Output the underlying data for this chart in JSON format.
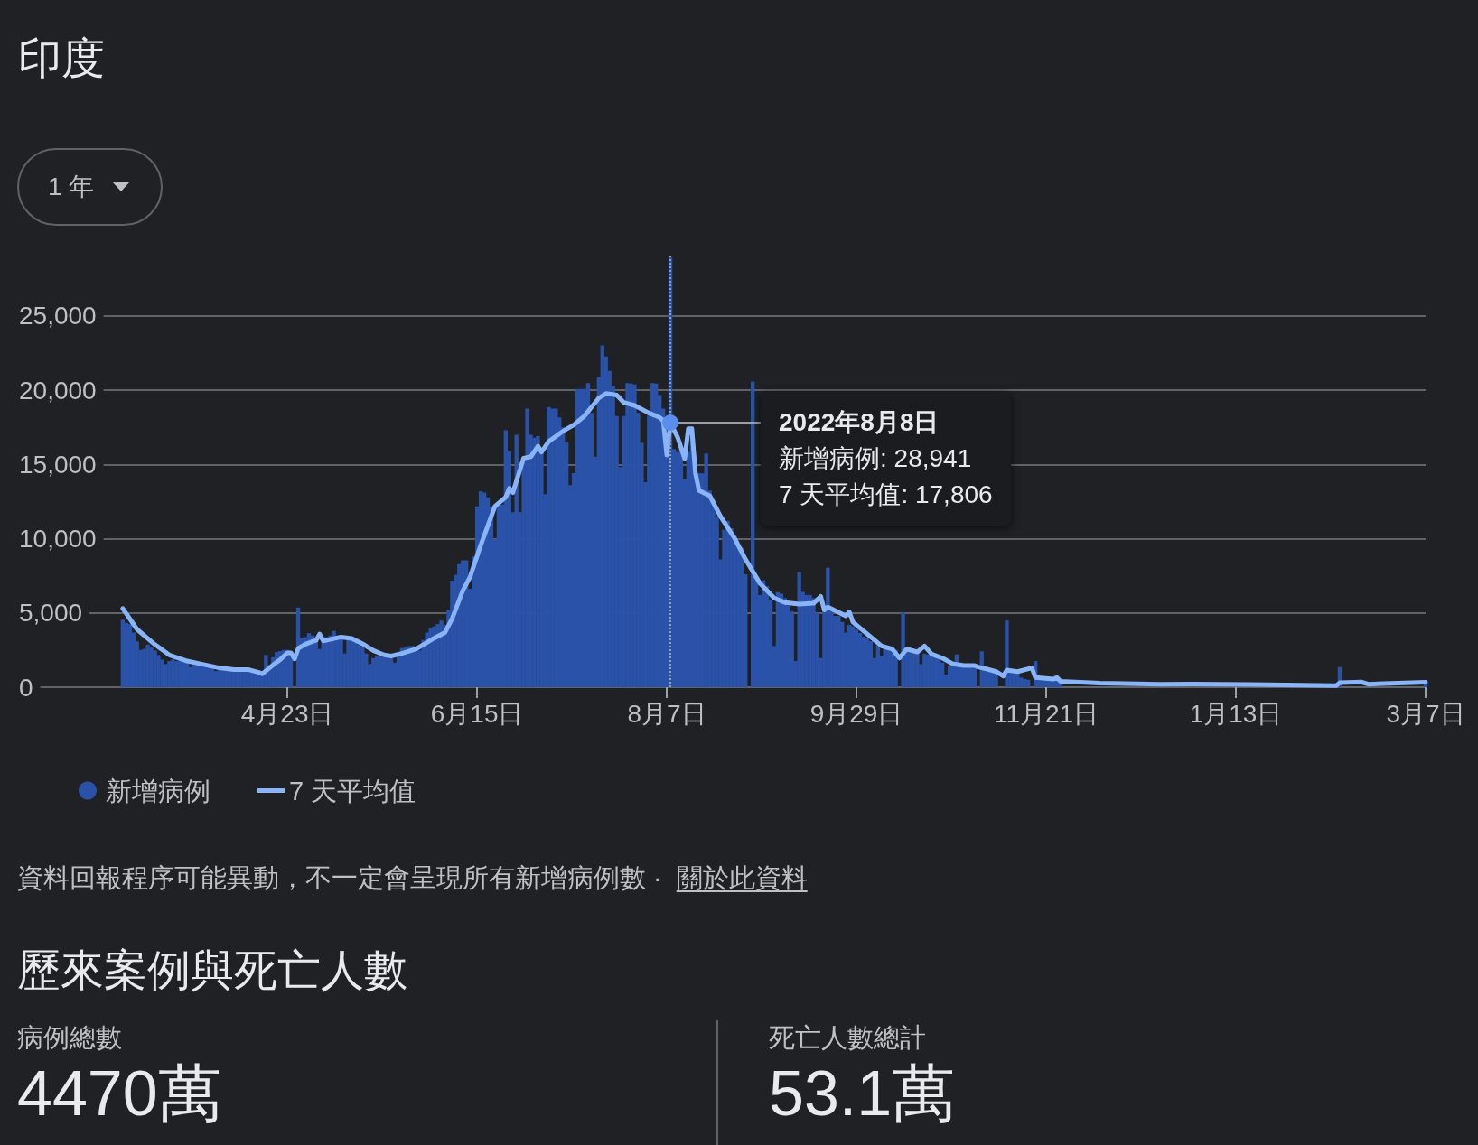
{
  "chart_data": {
    "type": "bar",
    "title": "印度",
    "xlim": [
      "2022-02-07",
      "2023-03-07"
    ],
    "xticks": [
      {
        "value": "2022-04-23",
        "label": "4月23日"
      },
      {
        "value": "2022-06-15",
        "label": "6月15日"
      },
      {
        "value": "2022-08-07",
        "label": "8月7日"
      },
      {
        "value": "2022-09-29",
        "label": "9月29日"
      },
      {
        "value": "2022-11-21",
        "label": "11月21日"
      },
      {
        "value": "2023-01-13",
        "label": "1月13日"
      },
      {
        "value": "2023-03-07",
        "label": "3月7日"
      }
    ],
    "ylim": [
      0,
      29000
    ],
    "yticks": [
      0,
      {
        "value": 5000,
        "label": "5,000"
      },
      {
        "value": 10000,
        "label": "10,000"
      },
      {
        "value": 15000,
        "label": "15,000"
      },
      {
        "value": 20000,
        "label": "20,000"
      },
      {
        "value": 25000,
        "label": "25,000"
      }
    ],
    "grid": "y",
    "legend": "bottom left",
    "marker": "none",
    "series": [
      {
        "name": "新增病例",
        "color": "#2a52a8",
        "x": [
          "2022-03-08",
          "2022-03-09",
          "2022-03-10",
          "2022-03-11",
          "2022-03-12",
          "2022-03-13",
          "2022-03-14",
          "2022-03-15",
          "2022-03-16",
          "2022-03-17",
          "2022-03-18",
          "2022-03-19",
          "2022-03-20",
          "2022-03-21",
          "2022-03-22",
          "2022-03-23",
          "2022-03-24",
          "2022-03-25",
          "2022-03-26",
          "2022-03-27",
          "2022-03-28",
          "2022-03-29",
          "2022-03-30",
          "2022-03-31",
          "2022-04-01",
          "2022-04-02",
          "2022-04-03",
          "2022-04-04",
          "2022-04-05",
          "2022-04-06",
          "2022-04-07",
          "2022-04-08",
          "2022-04-09",
          "2022-04-10",
          "2022-04-11",
          "2022-04-12",
          "2022-04-13",
          "2022-04-14",
          "2022-04-15",
          "2022-04-16",
          "2022-04-17",
          "2022-04-18",
          "2022-04-19",
          "2022-04-20",
          "2022-04-21",
          "2022-04-22",
          "2022-04-23",
          "2022-04-24",
          "2022-04-25",
          "2022-04-26",
          "2022-04-27",
          "2022-04-28",
          "2022-04-29",
          "2022-04-30",
          "2022-05-01",
          "2022-05-02",
          "2022-05-03",
          "2022-05-04",
          "2022-05-05",
          "2022-05-06",
          "2022-05-07",
          "2022-05-08",
          "2022-05-09",
          "2022-05-10",
          "2022-05-11",
          "2022-05-12",
          "2022-05-13",
          "2022-05-14",
          "2022-05-15",
          "2022-05-16",
          "2022-05-17",
          "2022-05-18",
          "2022-05-19",
          "2022-05-20",
          "2022-05-21",
          "2022-05-22",
          "2022-05-23",
          "2022-05-24",
          "2022-05-25",
          "2022-05-26",
          "2022-05-27",
          "2022-05-28",
          "2022-05-29",
          "2022-05-30",
          "2022-05-31",
          "2022-06-01",
          "2022-06-02",
          "2022-06-03",
          "2022-06-04",
          "2022-06-05",
          "2022-06-06",
          "2022-06-07",
          "2022-06-08",
          "2022-06-09",
          "2022-06-10",
          "2022-06-11",
          "2022-06-12",
          "2022-06-13",
          "2022-06-14",
          "2022-06-15",
          "2022-06-16",
          "2022-06-17",
          "2022-06-18",
          "2022-06-19",
          "2022-06-20",
          "2022-06-21",
          "2022-06-22",
          "2022-06-23",
          "2022-06-24",
          "2022-06-25",
          "2022-06-26",
          "2022-06-27",
          "2022-06-28",
          "2022-06-29",
          "2022-06-30",
          "2022-07-01",
          "2022-07-02",
          "2022-07-03",
          "2022-07-04",
          "2022-07-05",
          "2022-07-06",
          "2022-07-07",
          "2022-07-08",
          "2022-07-09",
          "2022-07-10",
          "2022-07-11",
          "2022-07-12",
          "2022-07-13",
          "2022-07-14",
          "2022-07-15",
          "2022-07-16",
          "2022-07-17",
          "2022-07-18",
          "2022-07-19",
          "2022-07-20",
          "2022-07-21",
          "2022-07-22",
          "2022-07-23",
          "2022-07-24",
          "2022-07-25",
          "2022-07-26",
          "2022-07-27",
          "2022-07-28",
          "2022-07-29",
          "2022-07-30",
          "2022-07-31",
          "2022-08-01",
          "2022-08-02",
          "2022-08-03",
          "2022-08-04",
          "2022-08-05",
          "2022-08-06",
          "2022-08-07",
          "2022-08-08",
          "2022-08-09",
          "2022-08-10",
          "2022-08-11",
          "2022-08-12",
          "2022-08-13",
          "2022-08-14",
          "2022-08-15",
          "2022-08-16",
          "2022-08-17",
          "2022-08-18",
          "2022-08-19",
          "2022-08-20",
          "2022-08-21",
          "2022-08-22",
          "2022-08-23",
          "2022-08-24",
          "2022-08-25",
          "2022-08-26",
          "2022-08-27",
          "2022-08-28",
          "2022-08-29",
          "2022-08-30",
          "2022-08-31",
          "2022-09-01",
          "2022-09-02",
          "2022-09-03",
          "2022-09-04",
          "2022-09-05",
          "2022-09-06",
          "2022-09-07",
          "2022-09-08",
          "2022-09-09",
          "2022-09-10",
          "2022-09-11",
          "2022-09-12",
          "2022-09-13",
          "2022-09-14",
          "2022-09-15",
          "2022-09-16",
          "2022-09-17",
          "2022-09-18",
          "2022-09-19",
          "2022-09-20",
          "2022-09-21",
          "2022-09-22",
          "2022-09-23",
          "2022-09-24",
          "2022-09-25",
          "2022-09-26",
          "2022-09-27",
          "2022-09-28",
          "2022-09-29",
          "2022-09-30",
          "2022-10-01",
          "2022-10-02",
          "2022-10-03",
          "2022-10-04",
          "2022-10-05",
          "2022-10-06",
          "2022-10-07",
          "2022-10-08",
          "2022-10-09",
          "2022-10-10",
          "2022-10-11",
          "2022-10-12",
          "2022-10-13",
          "2022-10-14",
          "2022-10-15",
          "2022-10-16",
          "2022-10-17",
          "2022-10-18",
          "2022-10-19",
          "2022-10-20",
          "2022-10-21",
          "2022-10-22",
          "2022-10-23",
          "2022-10-24",
          "2022-10-25",
          "2022-10-26",
          "2022-10-27",
          "2022-10-28",
          "2022-10-29",
          "2022-10-30",
          "2022-10-31",
          "2022-11-01",
          "2022-11-02",
          "2022-11-03",
          "2022-11-04",
          "2022-11-05",
          "2022-11-06",
          "2022-11-07",
          "2022-11-08",
          "2022-11-09",
          "2022-11-10",
          "2022-11-11",
          "2022-11-12",
          "2022-11-13",
          "2022-11-14",
          "2022-11-15",
          "2022-11-16",
          "2022-11-17",
          "2022-11-18",
          "2022-11-19",
          "2022-11-20",
          "2022-11-21",
          "2022-11-22",
          "2022-11-23",
          "2022-11-24",
          "2022-11-25",
          "2023-02-11",
          "2023-03-07"
        ],
        "values": [
          4550,
          4330,
          4250,
          3680,
          3080,
          2510,
          2570,
          2870,
          2670,
          2470,
          2170,
          1860,
          1560,
          1760,
          1860,
          1760,
          1760,
          1700,
          1660,
          1360,
          1500,
          1460,
          1460,
          1420,
          1360,
          1300,
          1090,
          1210,
          1210,
          1190,
          1170,
          1170,
          1150,
          1050,
          1090,
          1130,
          1170,
          1090,
          1010,
          1050,
          2170,
          1500,
          2020,
          2370,
          2430,
          2510,
          2510,
          2270,
          0,
          5360,
          3320,
          3380,
          3640,
          3480,
          3120,
          2570,
          3380,
          3380,
          3480,
          3790,
          3480,
          3380,
          2270,
          3320,
          3240,
          3080,
          2870,
          2670,
          2270,
          1560,
          1960,
          2100,
          2060,
          2020,
          2020,
          1960,
          1660,
          2100,
          2630,
          2670,
          2770,
          2770,
          2570,
          2470,
          3180,
          3680,
          3990,
          4090,
          4250,
          4490,
          4190,
          5200,
          7170,
          7570,
          8280,
          8540,
          8540,
          6620,
          8800,
          12180,
          13200,
          13100,
          12790,
          12180,
          9960,
          12290,
          12290,
          17290,
          15870,
          11780,
          17000,
          11780,
          15520,
          18760,
          17000,
          16800,
          16900,
          16000,
          12990,
          18860,
          18760,
          18760,
          18160,
          17500,
          16500,
          13600,
          14410,
          20080,
          20080,
          20080,
          20480,
          18460,
          15520,
          20890,
          23010,
          22260,
          21290,
          20280,
          18260,
          14820,
          18260,
          20480,
          20440,
          20380,
          18460,
          16440,
          13800,
          18460,
          20480,
          20440,
          19670,
          18760,
          15630,
          28941,
          16030,
          15830,
          16030,
          14010,
          15830,
          17550,
          15630,
          14410,
          14400,
          15730,
          13240,
          12600,
          11500,
          8600,
          10600,
          11200,
          10700,
          10200,
          9500,
          9400,
          7600,
          0,
          20580,
          7200,
          6200,
          7200,
          6800,
          5900,
          2770,
          6400,
          6300,
          6000,
          5500,
          5100,
          1760,
          7730,
          6420,
          6210,
          6210,
          6000,
          5000,
          1960,
          5400,
          8040,
          5400,
          4800,
          4800,
          4390,
          3680,
          4190,
          4100,
          3900,
          3650,
          3400,
          3300,
          3100,
          1960,
          2800,
          2100,
          2700,
          2650,
          2570,
          2500,
          0,
          5060,
          2530,
          2500,
          2450,
          2400,
          1560,
          2250,
          2200,
          2100,
          2050,
          1960,
          1660,
          850,
          1400,
          1660,
          2210,
          1660,
          1600,
          1500,
          1450,
          1400,
          0,
          2410,
          1360,
          1300,
          1050,
          1000,
          0,
          0,
          4490,
          1050,
          1000,
          950,
          650,
          550,
          500,
          0,
          1760,
          550,
          550,
          550,
          500,
          480,
          450,
          400,
          1360,
          300
        ]
      },
      {
        "name": "7 天平均值",
        "type": "line",
        "color": "#8ab4f8",
        "x": [
          "2022-03-08",
          "2022-03-12",
          "2022-03-17",
          "2022-03-21",
          "2022-03-26",
          "2022-03-30",
          "2022-04-04",
          "2022-04-08",
          "2022-04-12",
          "2022-04-15",
          "2022-04-16",
          "2022-04-19",
          "2022-04-21",
          "2022-04-23",
          "2022-04-24",
          "2022-04-25",
          "2022-04-26",
          "2022-04-28",
          "2022-04-30",
          "2022-05-01",
          "2022-05-02",
          "2022-05-03",
          "2022-05-08",
          "2022-05-11",
          "2022-05-14",
          "2022-05-17",
          "2022-05-20",
          "2022-05-22",
          "2022-05-25",
          "2022-05-29",
          "2022-05-31",
          "2022-06-03",
          "2022-06-06",
          "2022-06-08",
          "2022-06-11",
          "2022-06-13",
          "2022-06-16",
          "2022-06-20",
          "2022-06-23",
          "2022-06-24",
          "2022-06-25",
          "2022-06-28",
          "2022-06-30",
          "2022-07-02",
          "2022-07-03",
          "2022-07-05",
          "2022-07-09",
          "2022-07-12",
          "2022-07-15",
          "2022-07-19",
          "2022-07-21",
          "2022-07-24",
          "2022-07-26",
          "2022-07-29",
          "2022-08-02",
          "2022-08-05",
          "2022-08-06",
          "2022-08-07",
          "2022-08-08",
          "2022-08-10",
          "2022-08-12",
          "2022-08-13",
          "2022-08-14",
          "2022-08-15",
          "2022-08-16",
          "2022-08-19",
          "2022-08-22",
          "2022-08-26",
          "2022-08-29",
          "2022-09-02",
          "2022-09-06",
          "2022-09-09",
          "2022-09-13",
          "2022-09-17",
          "2022-09-19",
          "2022-09-20",
          "2022-09-21",
          "2022-09-26",
          "2022-09-27",
          "2022-09-28",
          "2022-10-03",
          "2022-10-06",
          "2022-10-09",
          "2022-10-11",
          "2022-10-13",
          "2022-10-16",
          "2022-10-18",
          "2022-10-20",
          "2022-10-23",
          "2022-10-26",
          "2022-10-29",
          "2022-11-01",
          "2022-11-02",
          "2022-11-04",
          "2022-11-07",
          "2022-11-09",
          "2022-11-10",
          "2022-11-13",
          "2022-11-17",
          "2022-11-18",
          "2022-11-23",
          "2022-11-24",
          "2022-11-25",
          "2022-12-06",
          "2022-12-23",
          "2023-01-01",
          "2023-01-17",
          "2023-02-10",
          "2023-02-11",
          "2023-02-17",
          "2023-02-19",
          "2023-03-07"
        ],
        "values": [
          5300,
          3890,
          2870,
          2170,
          1760,
          1560,
          1300,
          1190,
          1190,
          1000,
          900,
          1500,
          1860,
          2310,
          2310,
          1900,
          2600,
          2900,
          3080,
          3150,
          3580,
          3120,
          3380,
          3280,
          2920,
          2470,
          2170,
          2100,
          2270,
          2570,
          2870,
          3300,
          3680,
          4600,
          6500,
          7400,
          9550,
          12180,
          12790,
          13400,
          13100,
          15420,
          15520,
          16230,
          15830,
          16540,
          17240,
          17650,
          18260,
          19470,
          19770,
          19670,
          19170,
          18970,
          18460,
          18160,
          17950,
          15630,
          17806,
          16840,
          15380,
          17400,
          17400,
          14400,
          13240,
          12890,
          11500,
          10000,
          8600,
          7000,
          6000,
          5700,
          5600,
          5650,
          6110,
          5200,
          5400,
          4800,
          5060,
          4390,
          3380,
          2770,
          2570,
          1960,
          2570,
          2370,
          2770,
          2230,
          1960,
          1560,
          1460,
          1460,
          1360,
          1250,
          1050,
          750,
          1150,
          1050,
          1300,
          650,
          550,
          650,
          400,
          280,
          200,
          220,
          180,
          100,
          300,
          350,
          200,
          340
        ]
      }
    ],
    "ref_lines": [
      {
        "axis": "x",
        "value": "2022-08-08",
        "color": "#9aa0a6",
        "line_style": "dotted"
      }
    ],
    "annotations": [
      "1 年",
      {
        "text": "2022年8月8日",
        "x": "2022-08-08",
        "y": 17806
      },
      "新增病例: 28,941",
      "7 天平均值: 17,806",
      "資料回報程序可能異動，不一定會呈現所有新增病例數 ·",
      "關於此資料",
      "歷來案例與死亡人數",
      "病例總數",
      "4470萬",
      "死亡人數總計",
      "53.1萬"
    ]
  }
}
